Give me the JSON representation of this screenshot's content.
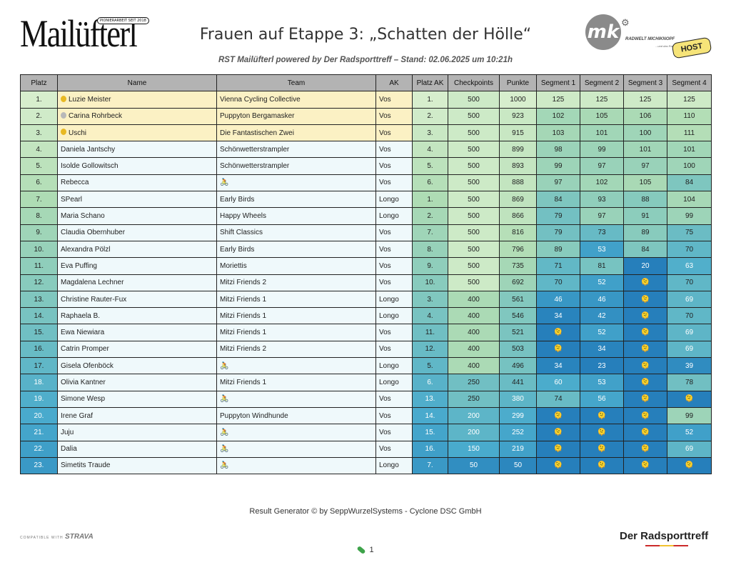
{
  "header": {
    "logo_text": "Mailüfterl",
    "logo_badge": "PIONIERARBEIT SEIT 2018",
    "title": "Frauen auf Etappe 3: „Schatten der Hölle“",
    "subtitle": "RST Mailüfterl powered by Der Radsporttreff – Stand: 02.06.2025 um 10:21h",
    "partner_logo_initials": "mk",
    "partner_logo_text": "RADWELT MICHIKNOPF",
    "partner_logo_sub": "...und das Rad gent!",
    "host_label": "HOST"
  },
  "colors": {
    "header_bg": "#b3b3b3",
    "highlight": "#fbf1c4",
    "base": "#eff9fb",
    "gold": "#e8b923",
    "silver": "#b8b8b8"
  },
  "table": {
    "columns": [
      "Platz",
      "Name",
      "Team",
      "AK",
      "Platz AK",
      "Checkpoints",
      "Punkte",
      "Segment 1",
      "Segment 2",
      "Segment 3",
      "Segment 4"
    ],
    "rows": [
      {
        "platz": "1.",
        "medal": "gold",
        "name": "Luzie Meister",
        "team": "Vienna Cycling Collective",
        "ak": "Vos",
        "platz_ak": "1.",
        "cp": "500",
        "punkte": "1000",
        "s1": "125",
        "s2": "125",
        "s3": "125",
        "s4": "125"
      },
      {
        "platz": "2.",
        "medal": "silver",
        "name": "Carina Rohrbeck",
        "team": "Puppyton Bergamasker",
        "ak": "Vos",
        "platz_ak": "2.",
        "cp": "500",
        "punkte": "923",
        "s1": "102",
        "s2": "105",
        "s3": "106",
        "s4": "110"
      },
      {
        "platz": "3.",
        "medal": "gold",
        "name": "Uschi",
        "team": "Die Fantastischen Zwei",
        "ak": "Vos",
        "platz_ak": "3.",
        "cp": "500",
        "punkte": "915",
        "s1": "103",
        "s2": "101",
        "s3": "100",
        "s4": "111"
      },
      {
        "platz": "4.",
        "medal": "",
        "name": "Daniela Jantschy",
        "team": "Schönwetterstrampler",
        "ak": "Vos",
        "platz_ak": "4.",
        "cp": "500",
        "punkte": "899",
        "s1": "98",
        "s2": "99",
        "s3": "101",
        "s4": "101"
      },
      {
        "platz": "5.",
        "medal": "",
        "name": "Isolde Gollowitsch",
        "team": "Schönwetterstrampler",
        "ak": "Vos",
        "platz_ak": "5.",
        "cp": "500",
        "punkte": "893",
        "s1": "99",
        "s2": "97",
        "s3": "97",
        "s4": "100"
      },
      {
        "platz": "6.",
        "medal": "",
        "name": "Rebecca",
        "team": "🚴",
        "ak": "Vos",
        "platz_ak": "6.",
        "cp": "500",
        "punkte": "888",
        "s1": "97",
        "s2": "102",
        "s3": "105",
        "s4": "84"
      },
      {
        "platz": "7.",
        "medal": "",
        "name": "SPearl",
        "team": "Early Birds",
        "ak": "Longo",
        "platz_ak": "1.",
        "cp": "500",
        "punkte": "869",
        "s1": "84",
        "s2": "93",
        "s3": "88",
        "s4": "104"
      },
      {
        "platz": "8.",
        "medal": "",
        "name": "Maria Schano",
        "team": "Happy Wheels",
        "ak": "Longo",
        "platz_ak": "2.",
        "cp": "500",
        "punkte": "866",
        "s1": "79",
        "s2": "97",
        "s3": "91",
        "s4": "99"
      },
      {
        "platz": "9.",
        "medal": "",
        "name": "Claudia Obernhuber",
        "team": "Shift Classics",
        "ak": "Vos",
        "platz_ak": "7.",
        "cp": "500",
        "punkte": "816",
        "s1": "79",
        "s2": "73",
        "s3": "89",
        "s4": "75"
      },
      {
        "platz": "10.",
        "medal": "",
        "name": "Alexandra Pölzl",
        "team": "Early Birds",
        "ak": "Vos",
        "platz_ak": "8.",
        "cp": "500",
        "punkte": "796",
        "s1": "89",
        "s2": "53",
        "s3": "84",
        "s4": "70"
      },
      {
        "platz": "11.",
        "medal": "",
        "name": "Eva Puffing",
        "team": "Moriettis",
        "ak": "Vos",
        "platz_ak": "9.",
        "cp": "500",
        "punkte": "735",
        "s1": "71",
        "s2": "81",
        "s3": "20",
        "s4": "63"
      },
      {
        "platz": "12.",
        "medal": "",
        "name": "Magdalena Lechner",
        "team": "Mitzi Friends 2",
        "ak": "Vos",
        "platz_ak": "10.",
        "cp": "500",
        "punkte": "692",
        "s1": "70",
        "s2": "52",
        "s3": "🫠",
        "s4": "70"
      },
      {
        "platz": "13.",
        "medal": "",
        "name": "Christine Rauter-Fux",
        "team": "Mitzi Friends 1",
        "ak": "Longo",
        "platz_ak": "3.",
        "cp": "400",
        "punkte": "561",
        "s1": "46",
        "s2": "46",
        "s3": "🫠",
        "s4": "69"
      },
      {
        "platz": "14.",
        "medal": "",
        "name": "Raphaela B.",
        "team": "Mitzi Friends 1",
        "ak": "Longo",
        "platz_ak": "4.",
        "cp": "400",
        "punkte": "546",
        "s1": "34",
        "s2": "42",
        "s3": "🫠",
        "s4": "70"
      },
      {
        "platz": "15.",
        "medal": "",
        "name": "Ewa Niewiara",
        "team": "Mitzi Friends 1",
        "ak": "Vos",
        "platz_ak": "11.",
        "cp": "400",
        "punkte": "521",
        "s1": "🫠",
        "s2": "52",
        "s3": "🫠",
        "s4": "69"
      },
      {
        "platz": "16.",
        "medal": "",
        "name": "Catrin Promper",
        "team": "Mitzi Friends 2",
        "ak": "Vos",
        "platz_ak": "12.",
        "cp": "400",
        "punkte": "503",
        "s1": "🫠",
        "s2": "34",
        "s3": "🫠",
        "s4": "69"
      },
      {
        "platz": "17.",
        "medal": "",
        "name": "Gisela Ofenböck",
        "team": "🚴",
        "ak": "Longo",
        "platz_ak": "5.",
        "cp": "400",
        "punkte": "496",
        "s1": "34",
        "s2": "23",
        "s3": "🫠",
        "s4": "39"
      },
      {
        "platz": "18.",
        "medal": "",
        "name": "Olivia Kantner",
        "team": "Mitzi Friends 1",
        "ak": "Longo",
        "platz_ak": "6.",
        "cp": "250",
        "punkte": "441",
        "s1": "60",
        "s2": "53",
        "s3": "🫠",
        "s4": "78"
      },
      {
        "platz": "19.",
        "medal": "",
        "name": "Simone Wesp",
        "team": "🚴",
        "ak": "Vos",
        "platz_ak": "13.",
        "cp": "250",
        "punkte": "380",
        "s1": "74",
        "s2": "56",
        "s3": "🫠",
        "s4": "🫠"
      },
      {
        "platz": "20.",
        "medal": "",
        "name": "Irene Graf",
        "team": "Puppyton Windhunde",
        "ak": "Vos",
        "platz_ak": "14.",
        "cp": "200",
        "punkte": "299",
        "s1": "🫠",
        "s2": "🫠",
        "s3": "🫠",
        "s4": "99"
      },
      {
        "platz": "21.",
        "medal": "",
        "name": "Juju",
        "team": "🚴",
        "ak": "Vos",
        "platz_ak": "15.",
        "cp": "200",
        "punkte": "252",
        "s1": "🫠",
        "s2": "🫠",
        "s3": "🫠",
        "s4": "52"
      },
      {
        "platz": "22.",
        "medal": "",
        "name": "Dalia",
        "team": "🚴",
        "ak": "Vos",
        "platz_ak": "16.",
        "cp": "150",
        "punkte": "219",
        "s1": "🫠",
        "s2": "🫠",
        "s3": "🫠",
        "s4": "69"
      },
      {
        "platz": "23.",
        "medal": "",
        "name": "Simetits Traude",
        "team": "🚴",
        "ak": "Longo",
        "platz_ak": "7.",
        "cp": "50",
        "punkte": "50",
        "s1": "🫠",
        "s2": "🫠",
        "s3": "🫠",
        "s4": "🫠"
      }
    ]
  },
  "footer": {
    "generator": "Result Generator © by SeppWurzelSystems - Cyclone DSC GmbH",
    "strava_prefix": "COMPATIBLE WITH",
    "strava_brand": "STRAVA",
    "brand": "Der Radsporttreff",
    "page": "1"
  }
}
